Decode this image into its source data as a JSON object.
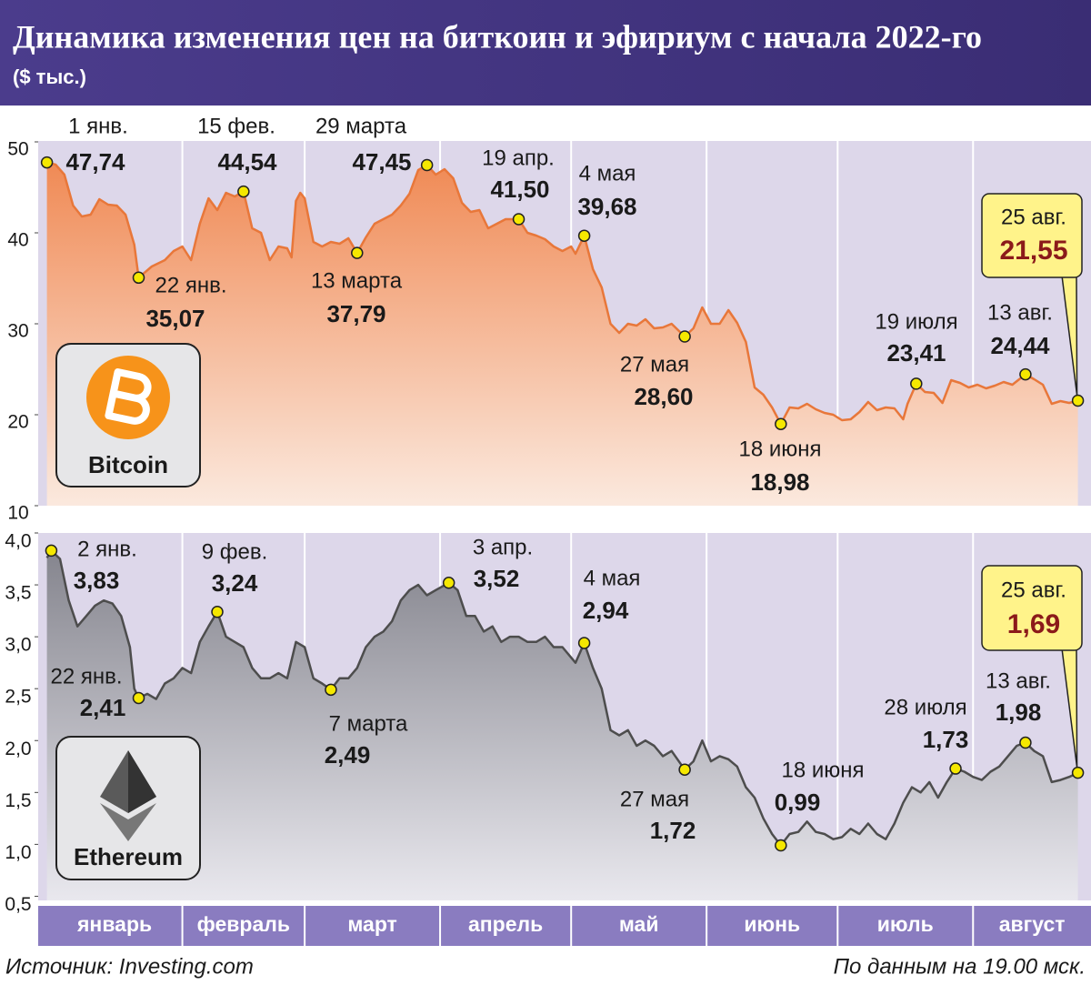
{
  "title": "Динамика изменения цен на биткоин и эфириум с начала 2022-го",
  "subtitle": "($ тыс.)",
  "source": "Источник: Investing.com",
  "note": "По данным на 19.00 мск.",
  "chart_data": [
    {
      "type": "line",
      "name": "Bitcoin",
      "color": "#e8773a",
      "xlim": [
        -1,
        240
      ],
      "xticks": [
        1,
        32,
        60,
        91,
        121,
        152,
        182,
        213
      ],
      "ylim": [
        10,
        53.8
      ],
      "yticks": [
        10,
        20,
        30,
        40,
        50
      ],
      "x": [
        1,
        3,
        5,
        7,
        9,
        11,
        13,
        15,
        17,
        19,
        21,
        22,
        25,
        28,
        30,
        32,
        34,
        36,
        38,
        40,
        42,
        44,
        46,
        48,
        50,
        52,
        54,
        56,
        57,
        58,
        59,
        60,
        62,
        64,
        66,
        68,
        70,
        72,
        74,
        76,
        78,
        80,
        82,
        84,
        86,
        88,
        90,
        92,
        94,
        96,
        98,
        100,
        102,
        104,
        106,
        109,
        111,
        113,
        115,
        117,
        119,
        121,
        122,
        124,
        126,
        128,
        130,
        132,
        134,
        136,
        138,
        140,
        142,
        144,
        147,
        149,
        151,
        153,
        155,
        157,
        159,
        161,
        163,
        165,
        167,
        169,
        171,
        173,
        175,
        177,
        179,
        181,
        183,
        185,
        187,
        189,
        191,
        193,
        195,
        197,
        198,
        200,
        202,
        204,
        206,
        208,
        210,
        212,
        214,
        216,
        218,
        220,
        222,
        225,
        227,
        229,
        231,
        233,
        235,
        237
      ],
      "values": [
        47.74,
        47.5,
        46.4,
        43.0,
        41.8,
        42.0,
        43.7,
        43.1,
        43.0,
        42.0,
        38.7,
        35.07,
        36.3,
        37.0,
        38.0,
        38.5,
        37.0,
        41.0,
        43.8,
        42.5,
        44.4,
        44.0,
        44.54,
        40.5,
        40.0,
        37.0,
        38.5,
        38.3,
        37.3,
        43.5,
        44.4,
        43.8,
        39.0,
        38.5,
        39.0,
        38.8,
        39.4,
        37.79,
        39.5,
        41.0,
        41.5,
        42.0,
        43.0,
        44.3,
        46.9,
        47.45,
        46.4,
        47.0,
        46.0,
        43.3,
        42.3,
        42.5,
        40.5,
        41.0,
        41.5,
        41.5,
        40.0,
        39.7,
        39.3,
        38.5,
        38.0,
        38.5,
        37.7,
        39.68,
        36.0,
        34.0,
        30.0,
        29.0,
        30.0,
        29.8,
        30.5,
        29.5,
        29.6,
        30.0,
        28.6,
        29.5,
        31.8,
        30.0,
        30.0,
        31.5,
        30.1,
        28.0,
        23.0,
        22.2,
        20.8,
        18.98,
        20.8,
        20.7,
        21.2,
        20.6,
        20.2,
        20.0,
        19.4,
        19.5,
        20.3,
        21.4,
        20.5,
        20.8,
        20.7,
        19.5,
        21.2,
        23.41,
        22.5,
        22.4,
        21.3,
        23.8,
        23.5,
        23.0,
        23.3,
        22.9,
        23.2,
        23.6,
        23.3,
        24.44,
        23.9,
        23.3,
        21.2,
        21.5,
        21.3,
        21.55
      ],
      "annotations": [
        {
          "x": 1,
          "value": 47.74,
          "date": "1 янв.",
          "value_label": "47,74"
        },
        {
          "x": 22,
          "value": 35.07,
          "date": "22 янв.",
          "value_label": "35,07"
        },
        {
          "x": 46,
          "value": 44.54,
          "date": "15 фев.",
          "value_label": "44,54"
        },
        {
          "x": 72,
          "value": 37.79,
          "date": "13 марта",
          "value_label": "37,79"
        },
        {
          "x": 88,
          "value": 47.45,
          "date": "29 марта",
          "value_label": "47,45"
        },
        {
          "x": 109,
          "value": 41.5,
          "date": "19 апр.",
          "value_label": "41,50"
        },
        {
          "x": 124,
          "value": 39.68,
          "date": "4 мая",
          "value_label": "39,68"
        },
        {
          "x": 147,
          "value": 28.6,
          "date": "27 мая",
          "value_label": "28,60"
        },
        {
          "x": 169,
          "value": 18.98,
          "date": "18 июня",
          "value_label": "18,98"
        },
        {
          "x": 200,
          "value": 23.41,
          "date": "19 июля",
          "value_label": "23,41"
        },
        {
          "x": 225,
          "value": 24.44,
          "date": "13 авг.",
          "value_label": "24,44"
        },
        {
          "x": 237,
          "value": 21.55,
          "date": "25 авг.",
          "value_label": "21,55",
          "style": "callout"
        }
      ]
    },
    {
      "type": "line",
      "name": "Ethereum",
      "color": "#4d4d4d",
      "xlim": [
        -1,
        240
      ],
      "xticks": [
        {
          "value": 1,
          "label": "январь"
        },
        {
          "value": 32,
          "label": "февраль"
        },
        {
          "value": 60,
          "label": "март"
        },
        {
          "value": 91,
          "label": "апрель"
        },
        {
          "value": 121,
          "label": "май"
        },
        {
          "value": 152,
          "label": "июнь"
        },
        {
          "value": 182,
          "label": "июль"
        },
        {
          "value": 213,
          "label": "август"
        }
      ],
      "ylim": [
        0.46,
        4.0
      ],
      "yticks": [
        {
          "value": 0.5,
          "label": "0,5"
        },
        {
          "value": 1,
          "label": "1,0"
        },
        {
          "value": 1.5,
          "label": "1,5"
        },
        {
          "value": 2,
          "label": "2,0"
        },
        {
          "value": 2.5,
          "label": "2,5"
        },
        {
          "value": 3,
          "label": "3,0"
        },
        {
          "value": 3.5,
          "label": "3,5"
        },
        {
          "value": 4,
          "label": "4,0"
        }
      ],
      "x": [
        1,
        2,
        4,
        6,
        8,
        10,
        12,
        14,
        16,
        18,
        20,
        21,
        22,
        24,
        26,
        28,
        30,
        32,
        34,
        36,
        38,
        40,
        42,
        44,
        46,
        48,
        50,
        52,
        54,
        56,
        58,
        60,
        62,
        64,
        66,
        68,
        70,
        72,
        74,
        76,
        78,
        80,
        82,
        84,
        86,
        88,
        90,
        93,
        95,
        97,
        99,
        101,
        103,
        105,
        107,
        109,
        111,
        113,
        115,
        117,
        119,
        121,
        122,
        124,
        126,
        128,
        130,
        132,
        134,
        136,
        138,
        140,
        142,
        144,
        147,
        149,
        151,
        153,
        155,
        157,
        159,
        161,
        163,
        165,
        167,
        169,
        171,
        173,
        175,
        177,
        179,
        181,
        183,
        185,
        187,
        189,
        191,
        193,
        195,
        197,
        199,
        201,
        203,
        205,
        207,
        209,
        211,
        213,
        215,
        217,
        219,
        221,
        223,
        225,
        227,
        229,
        231,
        233,
        235,
        237
      ],
      "values": [
        3.76,
        3.83,
        3.75,
        3.35,
        3.1,
        3.2,
        3.3,
        3.35,
        3.32,
        3.2,
        2.9,
        2.5,
        2.41,
        2.45,
        2.4,
        2.55,
        2.6,
        2.7,
        2.65,
        2.95,
        3.1,
        3.24,
        3.0,
        2.95,
        2.9,
        2.7,
        2.6,
        2.6,
        2.65,
        2.6,
        2.95,
        2.9,
        2.6,
        2.55,
        2.49,
        2.6,
        2.6,
        2.7,
        2.9,
        3.0,
        3.05,
        3.15,
        3.35,
        3.45,
        3.5,
        3.4,
        3.45,
        3.52,
        3.45,
        3.2,
        3.2,
        3.05,
        3.1,
        2.95,
        3.0,
        3.0,
        2.95,
        2.95,
        3.0,
        2.9,
        2.9,
        2.8,
        2.75,
        2.94,
        2.7,
        2.5,
        2.1,
        2.05,
        2.1,
        1.95,
        2.0,
        1.95,
        1.85,
        1.9,
        1.72,
        1.8,
        2.0,
        1.8,
        1.85,
        1.82,
        1.75,
        1.55,
        1.45,
        1.25,
        1.1,
        0.99,
        1.1,
        1.12,
        1.22,
        1.12,
        1.1,
        1.05,
        1.07,
        1.15,
        1.1,
        1.2,
        1.1,
        1.05,
        1.2,
        1.4,
        1.55,
        1.5,
        1.6,
        1.45,
        1.6,
        1.73,
        1.7,
        1.65,
        1.62,
        1.7,
        1.75,
        1.85,
        1.95,
        1.98,
        1.9,
        1.85,
        1.6,
        1.62,
        1.65,
        1.69
      ],
      "annotations": [
        {
          "x": 2,
          "value": 3.83,
          "date": "2 янв.",
          "value_label": "3,83"
        },
        {
          "x": 22,
          "value": 2.41,
          "date": "22 янв.",
          "value_label": "2,41"
        },
        {
          "x": 40,
          "value": 3.24,
          "date": "9 фев.",
          "value_label": "3,24"
        },
        {
          "x": 66,
          "value": 2.49,
          "date": "7 марта",
          "value_label": "2,49"
        },
        {
          "x": 93,
          "value": 3.52,
          "date": "3 апр.",
          "value_label": "3,52"
        },
        {
          "x": 124,
          "value": 2.94,
          "date": "4 мая",
          "value_label": "2,94"
        },
        {
          "x": 147,
          "value": 1.72,
          "date": "27 мая",
          "value_label": "1,72"
        },
        {
          "x": 169,
          "value": 0.99,
          "date": "18 июня",
          "value_label": "0,99"
        },
        {
          "x": 209,
          "value": 1.73,
          "date": "28 июля",
          "value_label": "1,73"
        },
        {
          "x": 225,
          "value": 1.98,
          "date": "13 авг.",
          "value_label": "1,98"
        },
        {
          "x": 237,
          "value": 1.69,
          "date": "25 авг.",
          "value_label": "1,69",
          "style": "callout"
        }
      ]
    }
  ]
}
